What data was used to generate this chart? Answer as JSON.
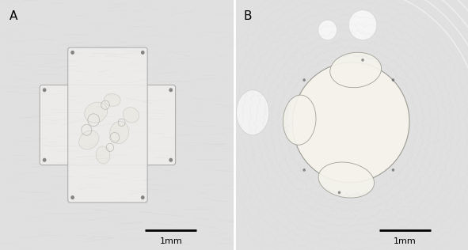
{
  "panel_labels": [
    "A",
    "B"
  ],
  "scale_bar_labels": [
    "1mm",
    "1mm"
  ],
  "label_fontsize": 11,
  "scale_fontsize": 8,
  "figure_width": 5.91,
  "figure_height": 3.16,
  "dpi": 100,
  "panel_A": {
    "bg_color": "#e2e2e2",
    "bg_noise_color": "#d0d0d0",
    "specimen_fill": "#eeecea",
    "specimen_edge": "#aaaaaa",
    "bubble_fill": "#f2f0ec",
    "bubble_edge": "#bbbbbb"
  },
  "panel_B": {
    "bg_color": "#e8e8e8",
    "specimen_fill": "#f5f3ec",
    "specimen_edge": "#999990",
    "swirl_color": "#d8d8d8"
  }
}
